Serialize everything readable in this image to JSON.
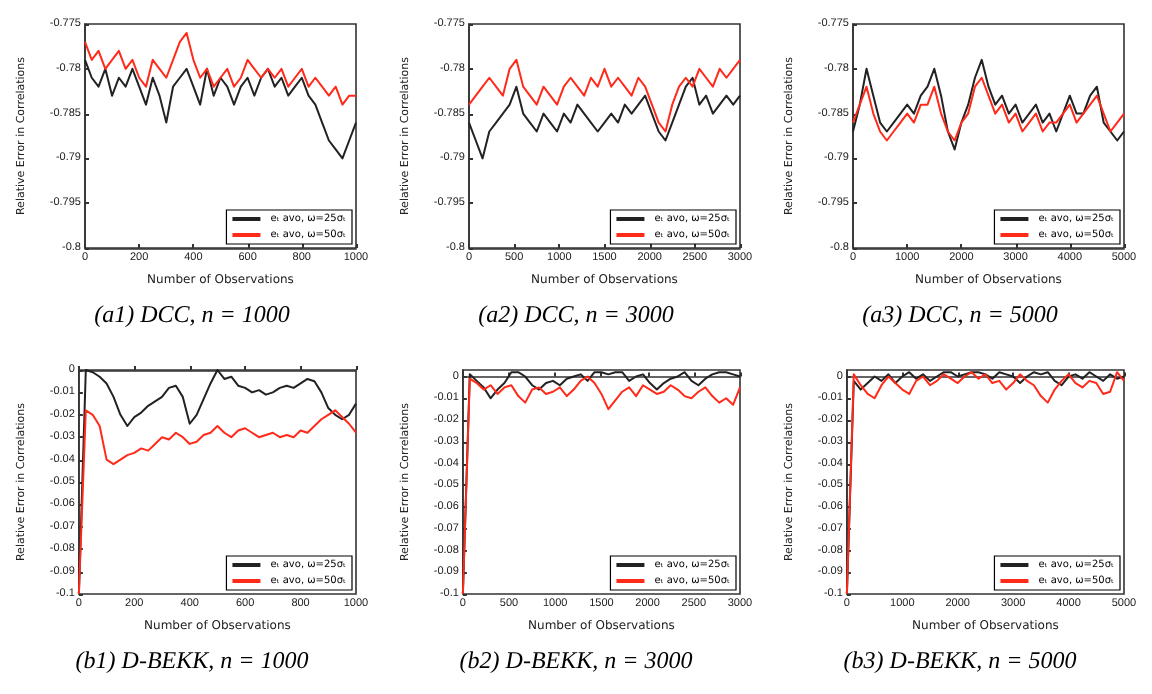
{
  "chart_data": [
    {
      "type": "line",
      "title": "(a1) DCC, n = 1000",
      "xlabel": "Number of Observations",
      "ylabel": "Relative Error in Correlations",
      "xlim": [
        0,
        1000
      ],
      "xticks": [
        0,
        200,
        400,
        600,
        800,
        1000
      ],
      "ylim": [
        -0.8,
        -0.775
      ],
      "yticks": [
        -0.8,
        -0.795,
        -0.79,
        -0.785,
        -0.78,
        -0.775
      ],
      "legend": "bottom right",
      "x": [
        0,
        25,
        50,
        75,
        100,
        125,
        150,
        175,
        200,
        225,
        250,
        275,
        300,
        325,
        350,
        375,
        400,
        425,
        450,
        475,
        500,
        525,
        550,
        575,
        600,
        625,
        650,
        675,
        700,
        725,
        750,
        775,
        800,
        825,
        850,
        875,
        900,
        925,
        950,
        975,
        1000
      ],
      "series": [
        {
          "name": "eₜ avo, ω=25σₜ",
          "color": "#222222",
          "values": [
            -0.779,
            -0.781,
            -0.782,
            -0.78,
            -0.783,
            -0.781,
            -0.782,
            -0.78,
            -0.782,
            -0.784,
            -0.781,
            -0.783,
            -0.786,
            -0.782,
            -0.781,
            -0.78,
            -0.782,
            -0.784,
            -0.78,
            -0.783,
            -0.781,
            -0.782,
            -0.784,
            -0.782,
            -0.781,
            -0.783,
            -0.781,
            -0.78,
            -0.782,
            -0.781,
            -0.783,
            -0.782,
            -0.781,
            -0.783,
            -0.784,
            -0.786,
            -0.788,
            -0.789,
            -0.79,
            -0.788,
            -0.786
          ]
        },
        {
          "name": "eₜ avo, ω=50σₜ",
          "color": "#ff2a1a",
          "values": [
            -0.777,
            -0.779,
            -0.778,
            -0.78,
            -0.779,
            -0.778,
            -0.78,
            -0.779,
            -0.781,
            -0.782,
            -0.779,
            -0.78,
            -0.781,
            -0.779,
            -0.777,
            -0.776,
            -0.779,
            -0.781,
            -0.78,
            -0.782,
            -0.781,
            -0.78,
            -0.782,
            -0.781,
            -0.779,
            -0.78,
            -0.781,
            -0.78,
            -0.781,
            -0.78,
            -0.782,
            -0.781,
            -0.78,
            -0.782,
            -0.781,
            -0.782,
            -0.783,
            -0.782,
            -0.784,
            -0.783,
            -0.783
          ]
        }
      ]
    },
    {
      "type": "line",
      "title": "(a2) DCC, n = 3000",
      "xlabel": "Number of Observations",
      "ylabel": "Relative Error in Correlations",
      "xlim": [
        0,
        3000
      ],
      "xticks": [
        0,
        500,
        1000,
        1500,
        2000,
        2500,
        3000
      ],
      "ylim": [
        -0.8,
        -0.775
      ],
      "yticks": [
        -0.8,
        -0.795,
        -0.79,
        -0.785,
        -0.78,
        -0.775
      ],
      "legend": "bottom right",
      "x": [
        0,
        75,
        150,
        225,
        300,
        375,
        450,
        525,
        600,
        675,
        750,
        825,
        900,
        975,
        1050,
        1125,
        1200,
        1275,
        1350,
        1425,
        1500,
        1575,
        1650,
        1725,
        1800,
        1875,
        1950,
        2025,
        2100,
        2175,
        2250,
        2325,
        2400,
        2475,
        2550,
        2625,
        2700,
        2775,
        2850,
        2925,
        3000
      ],
      "series": [
        {
          "name": "eₜ avo, ω=25σₜ",
          "color": "#222222",
          "values": [
            -0.786,
            -0.788,
            -0.79,
            -0.787,
            -0.786,
            -0.785,
            -0.784,
            -0.782,
            -0.785,
            -0.786,
            -0.787,
            -0.785,
            -0.786,
            -0.787,
            -0.785,
            -0.786,
            -0.784,
            -0.785,
            -0.786,
            -0.787,
            -0.786,
            -0.785,
            -0.786,
            -0.784,
            -0.785,
            -0.784,
            -0.783,
            -0.785,
            -0.787,
            -0.788,
            -0.786,
            -0.784,
            -0.782,
            -0.781,
            -0.784,
            -0.783,
            -0.785,
            -0.784,
            -0.783,
            -0.784,
            -0.783
          ]
        },
        {
          "name": "eₜ avo, ω=50σₜ",
          "color": "#ff2a1a",
          "values": [
            -0.784,
            -0.783,
            -0.782,
            -0.781,
            -0.782,
            -0.783,
            -0.78,
            -0.779,
            -0.782,
            -0.783,
            -0.784,
            -0.782,
            -0.783,
            -0.784,
            -0.782,
            -0.781,
            -0.782,
            -0.783,
            -0.781,
            -0.782,
            -0.78,
            -0.782,
            -0.781,
            -0.782,
            -0.783,
            -0.781,
            -0.782,
            -0.784,
            -0.786,
            -0.787,
            -0.784,
            -0.782,
            -0.781,
            -0.782,
            -0.78,
            -0.781,
            -0.782,
            -0.78,
            -0.781,
            -0.78,
            -0.779
          ]
        }
      ]
    },
    {
      "type": "line",
      "title": "(a3) DCC, n = 5000",
      "xlabel": "Number of Observations",
      "ylabel": "Relative Error in Correlations",
      "xlim": [
        0,
        5000
      ],
      "xticks": [
        0,
        1000,
        2000,
        3000,
        4000,
        5000
      ],
      "ylim": [
        -0.8,
        -0.775
      ],
      "yticks": [
        -0.8,
        -0.795,
        -0.79,
        -0.785,
        -0.78,
        -0.775
      ],
      "legend": "bottom right",
      "x": [
        0,
        125,
        250,
        375,
        500,
        625,
        750,
        875,
        1000,
        1125,
        1250,
        1375,
        1500,
        1625,
        1750,
        1875,
        2000,
        2125,
        2250,
        2375,
        2500,
        2625,
        2750,
        2875,
        3000,
        3125,
        3250,
        3375,
        3500,
        3625,
        3750,
        3875,
        4000,
        4125,
        4250,
        4375,
        4500,
        4625,
        4750,
        4875,
        5000
      ],
      "series": [
        {
          "name": "eₜ avo, ω=25σₜ",
          "color": "#222222",
          "values": [
            -0.787,
            -0.784,
            -0.78,
            -0.783,
            -0.786,
            -0.787,
            -0.786,
            -0.785,
            -0.784,
            -0.785,
            -0.783,
            -0.782,
            -0.78,
            -0.783,
            -0.787,
            -0.789,
            -0.786,
            -0.784,
            -0.781,
            -0.779,
            -0.782,
            -0.784,
            -0.783,
            -0.785,
            -0.784,
            -0.786,
            -0.785,
            -0.784,
            -0.786,
            -0.785,
            -0.787,
            -0.785,
            -0.783,
            -0.785,
            -0.785,
            -0.783,
            -0.782,
            -0.786,
            -0.787,
            -0.788,
            -0.787
          ]
        },
        {
          "name": "eₜ avo, ω=50σₜ",
          "color": "#ff2a1a",
          "values": [
            -0.786,
            -0.784,
            -0.782,
            -0.785,
            -0.787,
            -0.788,
            -0.787,
            -0.786,
            -0.785,
            -0.786,
            -0.784,
            -0.784,
            -0.782,
            -0.785,
            -0.787,
            -0.788,
            -0.786,
            -0.785,
            -0.782,
            -0.781,
            -0.783,
            -0.785,
            -0.784,
            -0.786,
            -0.785,
            -0.787,
            -0.786,
            -0.785,
            -0.787,
            -0.786,
            -0.786,
            -0.785,
            -0.784,
            -0.786,
            -0.785,
            -0.784,
            -0.783,
            -0.785,
            -0.787,
            -0.786,
            -0.785
          ]
        }
      ]
    },
    {
      "type": "line",
      "title": "(b1) D-BEKK, n = 1000",
      "xlabel": "Number of Observations",
      "ylabel": "Relative Error in Correlations",
      "xlim": [
        0,
        1000
      ],
      "xticks": [
        0,
        200,
        400,
        600,
        800,
        1000
      ],
      "ylim": [
        -0.1,
        0
      ],
      "yticks": [
        -0.1,
        -0.09,
        -0.08,
        -0.07,
        -0.06,
        -0.05,
        -0.04,
        -0.03,
        -0.02,
        -0.01,
        0
      ],
      "legend": "bottom right",
      "x": [
        0,
        25,
        50,
        75,
        100,
        125,
        150,
        175,
        200,
        225,
        250,
        275,
        300,
        325,
        350,
        375,
        400,
        425,
        450,
        475,
        500,
        525,
        550,
        575,
        600,
        625,
        650,
        675,
        700,
        725,
        750,
        775,
        800,
        825,
        850,
        875,
        900,
        925,
        950,
        975,
        1000
      ],
      "series": [
        {
          "name": "eₜ avo, ω=25σₜ",
          "color": "#222222",
          "values": [
            -0.1,
            0,
            -0.001,
            -0.003,
            -0.006,
            -0.012,
            -0.02,
            -0.025,
            -0.021,
            -0.019,
            -0.016,
            -0.014,
            -0.012,
            -0.008,
            -0.007,
            -0.012,
            -0.024,
            -0.02,
            -0.013,
            -0.006,
            0,
            -0.004,
            -0.003,
            -0.007,
            -0.008,
            -0.01,
            -0.009,
            -0.011,
            -0.01,
            -0.008,
            -0.007,
            -0.008,
            -0.006,
            -0.004,
            -0.005,
            -0.01,
            -0.017,
            -0.02,
            -0.022,
            -0.02,
            -0.015
          ]
        },
        {
          "name": "eₜ avo, ω=50σₜ",
          "color": "#ff2a1a",
          "values": [
            -0.1,
            -0.018,
            -0.02,
            -0.025,
            -0.04,
            -0.042,
            -0.04,
            -0.038,
            -0.037,
            -0.035,
            -0.036,
            -0.033,
            -0.03,
            -0.031,
            -0.028,
            -0.03,
            -0.033,
            -0.032,
            -0.029,
            -0.028,
            -0.025,
            -0.028,
            -0.03,
            -0.027,
            -0.026,
            -0.028,
            -0.03,
            -0.029,
            -0.028,
            -0.03,
            -0.029,
            -0.03,
            -0.027,
            -0.028,
            -0.025,
            -0.022,
            -0.02,
            -0.018,
            -0.021,
            -0.024,
            -0.028
          ]
        }
      ]
    },
    {
      "type": "line",
      "title": "(b2) D-BEKK, n = 3000",
      "xlabel": "Number of Observations",
      "ylabel": "Relative Error in Correlations",
      "xlim": [
        0,
        3000
      ],
      "xticks": [
        0,
        500,
        1000,
        1500,
        2000,
        2500,
        3000
      ],
      "ylim": [
        -0.1,
        0.003
      ],
      "yticks": [
        -0.1,
        -0.09,
        -0.08,
        -0.07,
        -0.06,
        -0.05,
        -0.04,
        -0.03,
        -0.02,
        -0.01,
        0
      ],
      "legend": "bottom right",
      "x": [
        0,
        75,
        150,
        225,
        300,
        375,
        450,
        525,
        600,
        675,
        750,
        825,
        900,
        975,
        1050,
        1125,
        1200,
        1275,
        1350,
        1425,
        1500,
        1575,
        1650,
        1725,
        1800,
        1875,
        1950,
        2025,
        2100,
        2175,
        2250,
        2325,
        2400,
        2475,
        2550,
        2625,
        2700,
        2775,
        2850,
        2925,
        3000
      ],
      "series": [
        {
          "name": "eₜ avo, ω=25σₜ",
          "color": "#222222",
          "values": [
            -0.1,
            0.001,
            -0.002,
            -0.005,
            -0.01,
            -0.006,
            -0.003,
            0.002,
            0.002,
            0,
            -0.004,
            -0.006,
            -0.003,
            -0.002,
            -0.004,
            -0.001,
            0,
            0.001,
            -0.002,
            0.002,
            0.002,
            0.001,
            0.002,
            0.002,
            -0.002,
            0,
            0.001,
            -0.003,
            -0.006,
            -0.003,
            -0.001,
            0,
            0.002,
            -0.002,
            -0.004,
            -0.001,
            0.001,
            0.002,
            0.002,
            0.001,
            0
          ]
        },
        {
          "name": "eₜ avo, ω=50σₜ",
          "color": "#ff2a1a",
          "values": [
            -0.1,
            -0.001,
            -0.003,
            -0.006,
            -0.004,
            -0.008,
            -0.005,
            -0.004,
            -0.009,
            -0.012,
            -0.006,
            -0.005,
            -0.008,
            -0.007,
            -0.005,
            -0.009,
            -0.006,
            -0.002,
            0,
            -0.003,
            -0.008,
            -0.015,
            -0.011,
            -0.007,
            -0.005,
            -0.009,
            -0.004,
            -0.006,
            -0.008,
            -0.007,
            -0.004,
            -0.006,
            -0.009,
            -0.01,
            -0.007,
            -0.005,
            -0.009,
            -0.012,
            -0.01,
            -0.013,
            -0.005
          ]
        }
      ]
    },
    {
      "type": "line",
      "title": "(b3) D-BEKK, n = 5000",
      "xlabel": "Number of Observations",
      "ylabel": "Relative Error in Correlations",
      "xlim": [
        0,
        5000
      ],
      "xticks": [
        0,
        1000,
        2000,
        3000,
        4000,
        5000
      ],
      "ylim": [
        -0.1,
        0.003
      ],
      "yticks": [
        -0.1,
        -0.09,
        -0.08,
        -0.07,
        -0.06,
        -0.05,
        -0.04,
        -0.03,
        -0.02,
        -0.01,
        0
      ],
      "legend": "bottom right",
      "x": [
        0,
        125,
        250,
        375,
        500,
        625,
        750,
        875,
        1000,
        1125,
        1250,
        1375,
        1500,
        1625,
        1750,
        1875,
        2000,
        2125,
        2250,
        2375,
        2500,
        2625,
        2750,
        2875,
        3000,
        3125,
        3250,
        3375,
        3500,
        3625,
        3750,
        3875,
        4000,
        4125,
        4250,
        4375,
        4500,
        4625,
        4750,
        4875,
        5000
      ],
      "series": [
        {
          "name": "eₜ avo, ω=25σₜ",
          "color": "#222222",
          "values": [
            -0.1,
            -0.002,
            -0.006,
            -0.003,
            0,
            -0.002,
            0.001,
            -0.003,
            0,
            0.002,
            -0.001,
            0.001,
            -0.002,
            0,
            0.002,
            0.002,
            0,
            0.001,
            0.002,
            0.002,
            0.001,
            -0.001,
            0.002,
            0.001,
            0,
            -0.003,
            0,
            0.002,
            0.001,
            0.002,
            -0.002,
            -0.004,
            0,
            0.001,
            -0.001,
            0.002,
            0,
            -0.002,
            0.001,
            -0.001,
            0
          ]
        },
        {
          "name": "eₜ avo, ω=50σₜ",
          "color": "#ff2a1a",
          "values": [
            -0.1,
            0.001,
            -0.004,
            -0.008,
            -0.01,
            -0.004,
            0,
            -0.003,
            -0.006,
            -0.008,
            -0.002,
            0,
            -0.004,
            -0.002,
            0.001,
            -0.001,
            -0.003,
            0,
            0.002,
            -0.001,
            0.001,
            -0.003,
            -0.002,
            -0.006,
            -0.003,
            0.001,
            -0.002,
            -0.004,
            -0.009,
            -0.012,
            -0.006,
            -0.002,
            0.001,
            -0.003,
            -0.005,
            -0.002,
            -0.003,
            -0.008,
            -0.007,
            0.002,
            -0.002
          ]
        }
      ]
    }
  ]
}
